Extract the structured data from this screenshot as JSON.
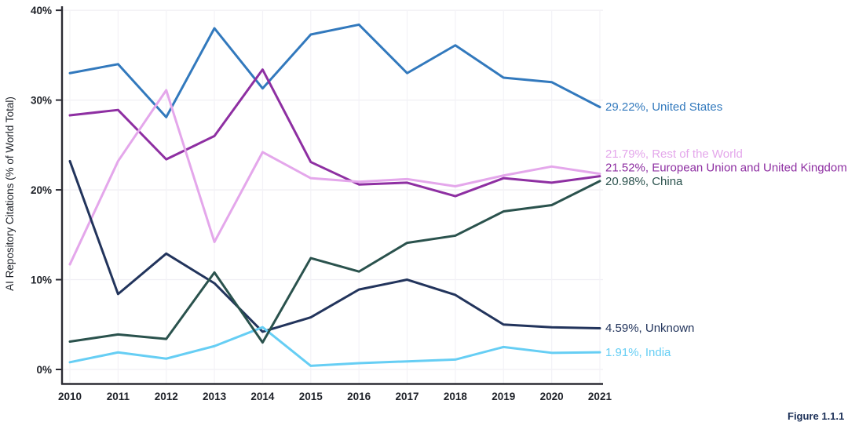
{
  "chart_data": {
    "type": "line",
    "title": "",
    "xlabel": "",
    "ylabel": "AI Repository Citations (% of World Total)",
    "x": [
      2010,
      2011,
      2012,
      2013,
      2014,
      2015,
      2016,
      2017,
      2018,
      2019,
      2020,
      2021
    ],
    "y_ticks": [
      "0%",
      "10%",
      "20%",
      "30%",
      "40%"
    ],
    "ylim": [
      0,
      40
    ],
    "grid": true,
    "legend_position": "right-end-labels",
    "series": [
      {
        "name": "United States",
        "color": "#3279bd",
        "end_label": "29.22%, United States",
        "final_value": 29.22,
        "values": [
          33.0,
          34.0,
          28.1,
          38.0,
          31.3,
          37.3,
          38.4,
          33.0,
          36.1,
          32.5,
          32.0,
          29.22
        ]
      },
      {
        "name": "Rest of the World",
        "color": "#e4a7eb",
        "end_label": "21.79%, Rest of the World",
        "final_value": 21.79,
        "values": [
          11.7,
          23.2,
          31.1,
          14.2,
          24.2,
          21.3,
          20.9,
          21.2,
          20.4,
          21.6,
          22.6,
          21.79
        ]
      },
      {
        "name": "European Union and United Kingdom",
        "color": "#8e2fa2",
        "end_label": "21.52%, European Union and United Kingdom",
        "final_value": 21.52,
        "values": [
          28.3,
          28.9,
          23.4,
          26.0,
          33.4,
          23.1,
          20.6,
          20.8,
          19.3,
          21.3,
          20.8,
          21.52
        ]
      },
      {
        "name": "China",
        "color": "#2a524d",
        "end_label": "20.98%, China",
        "final_value": 20.98,
        "values": [
          3.1,
          3.9,
          3.4,
          10.8,
          3.0,
          12.4,
          10.9,
          14.1,
          14.9,
          17.6,
          18.3,
          20.98
        ]
      },
      {
        "name": "Unknown",
        "color": "#22345c",
        "end_label": "4.59%, Unknown",
        "final_value": 4.59,
        "values": [
          23.2,
          8.4,
          12.9,
          9.6,
          4.2,
          5.8,
          8.9,
          10.0,
          8.3,
          5.0,
          4.7,
          4.59
        ]
      },
      {
        "name": "India",
        "color": "#66cef4",
        "end_label": "1.91%, India",
        "final_value": 1.91,
        "values": [
          0.8,
          1.9,
          1.2,
          2.6,
          4.7,
          0.4,
          0.7,
          0.9,
          1.1,
          2.5,
          1.85,
          1.91
        ]
      }
    ],
    "caption_fragment": "Figure 1.1.1"
  }
}
